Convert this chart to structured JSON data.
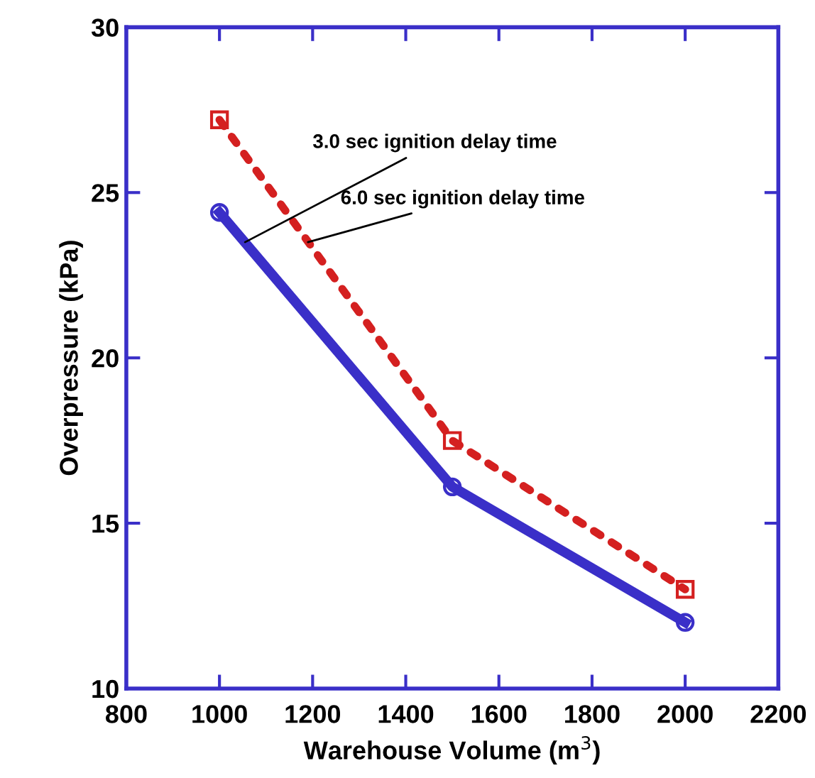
{
  "chart_data": {
    "type": "line",
    "xlabel": "Warehouse Volume (m$^{3}$)",
    "ylabel": "Overpressure (kPa)",
    "x": [
      1000,
      1500,
      2000
    ],
    "series": [
      {
        "color": "#3a2fc8",
        "values": [
          24.4,
          16.1,
          12.0
        ],
        "marker": "circle",
        "line_style": "solid"
      },
      {
        "color": "#d42020",
        "values": [
          27.2,
          17.5,
          13.0
        ],
        "marker": "square",
        "line_style": "dotted"
      }
    ],
    "annotations": [
      {
        "text": "3.0 sec ignition delay time",
        "x": 1055,
        "y": 23.5
      },
      {
        "text": "6.0 sec ignition delay time",
        "x": 1190,
        "y": 23.5
      }
    ],
    "xlim": [
      800,
      2200
    ],
    "xticks": [
      800,
      1000,
      1200,
      1400,
      1600,
      1800,
      2000,
      2200
    ],
    "ylim": [
      10,
      30
    ],
    "yticks": [
      10,
      15,
      20,
      25,
      30
    ],
    "grid": false,
    "legend": false
  }
}
